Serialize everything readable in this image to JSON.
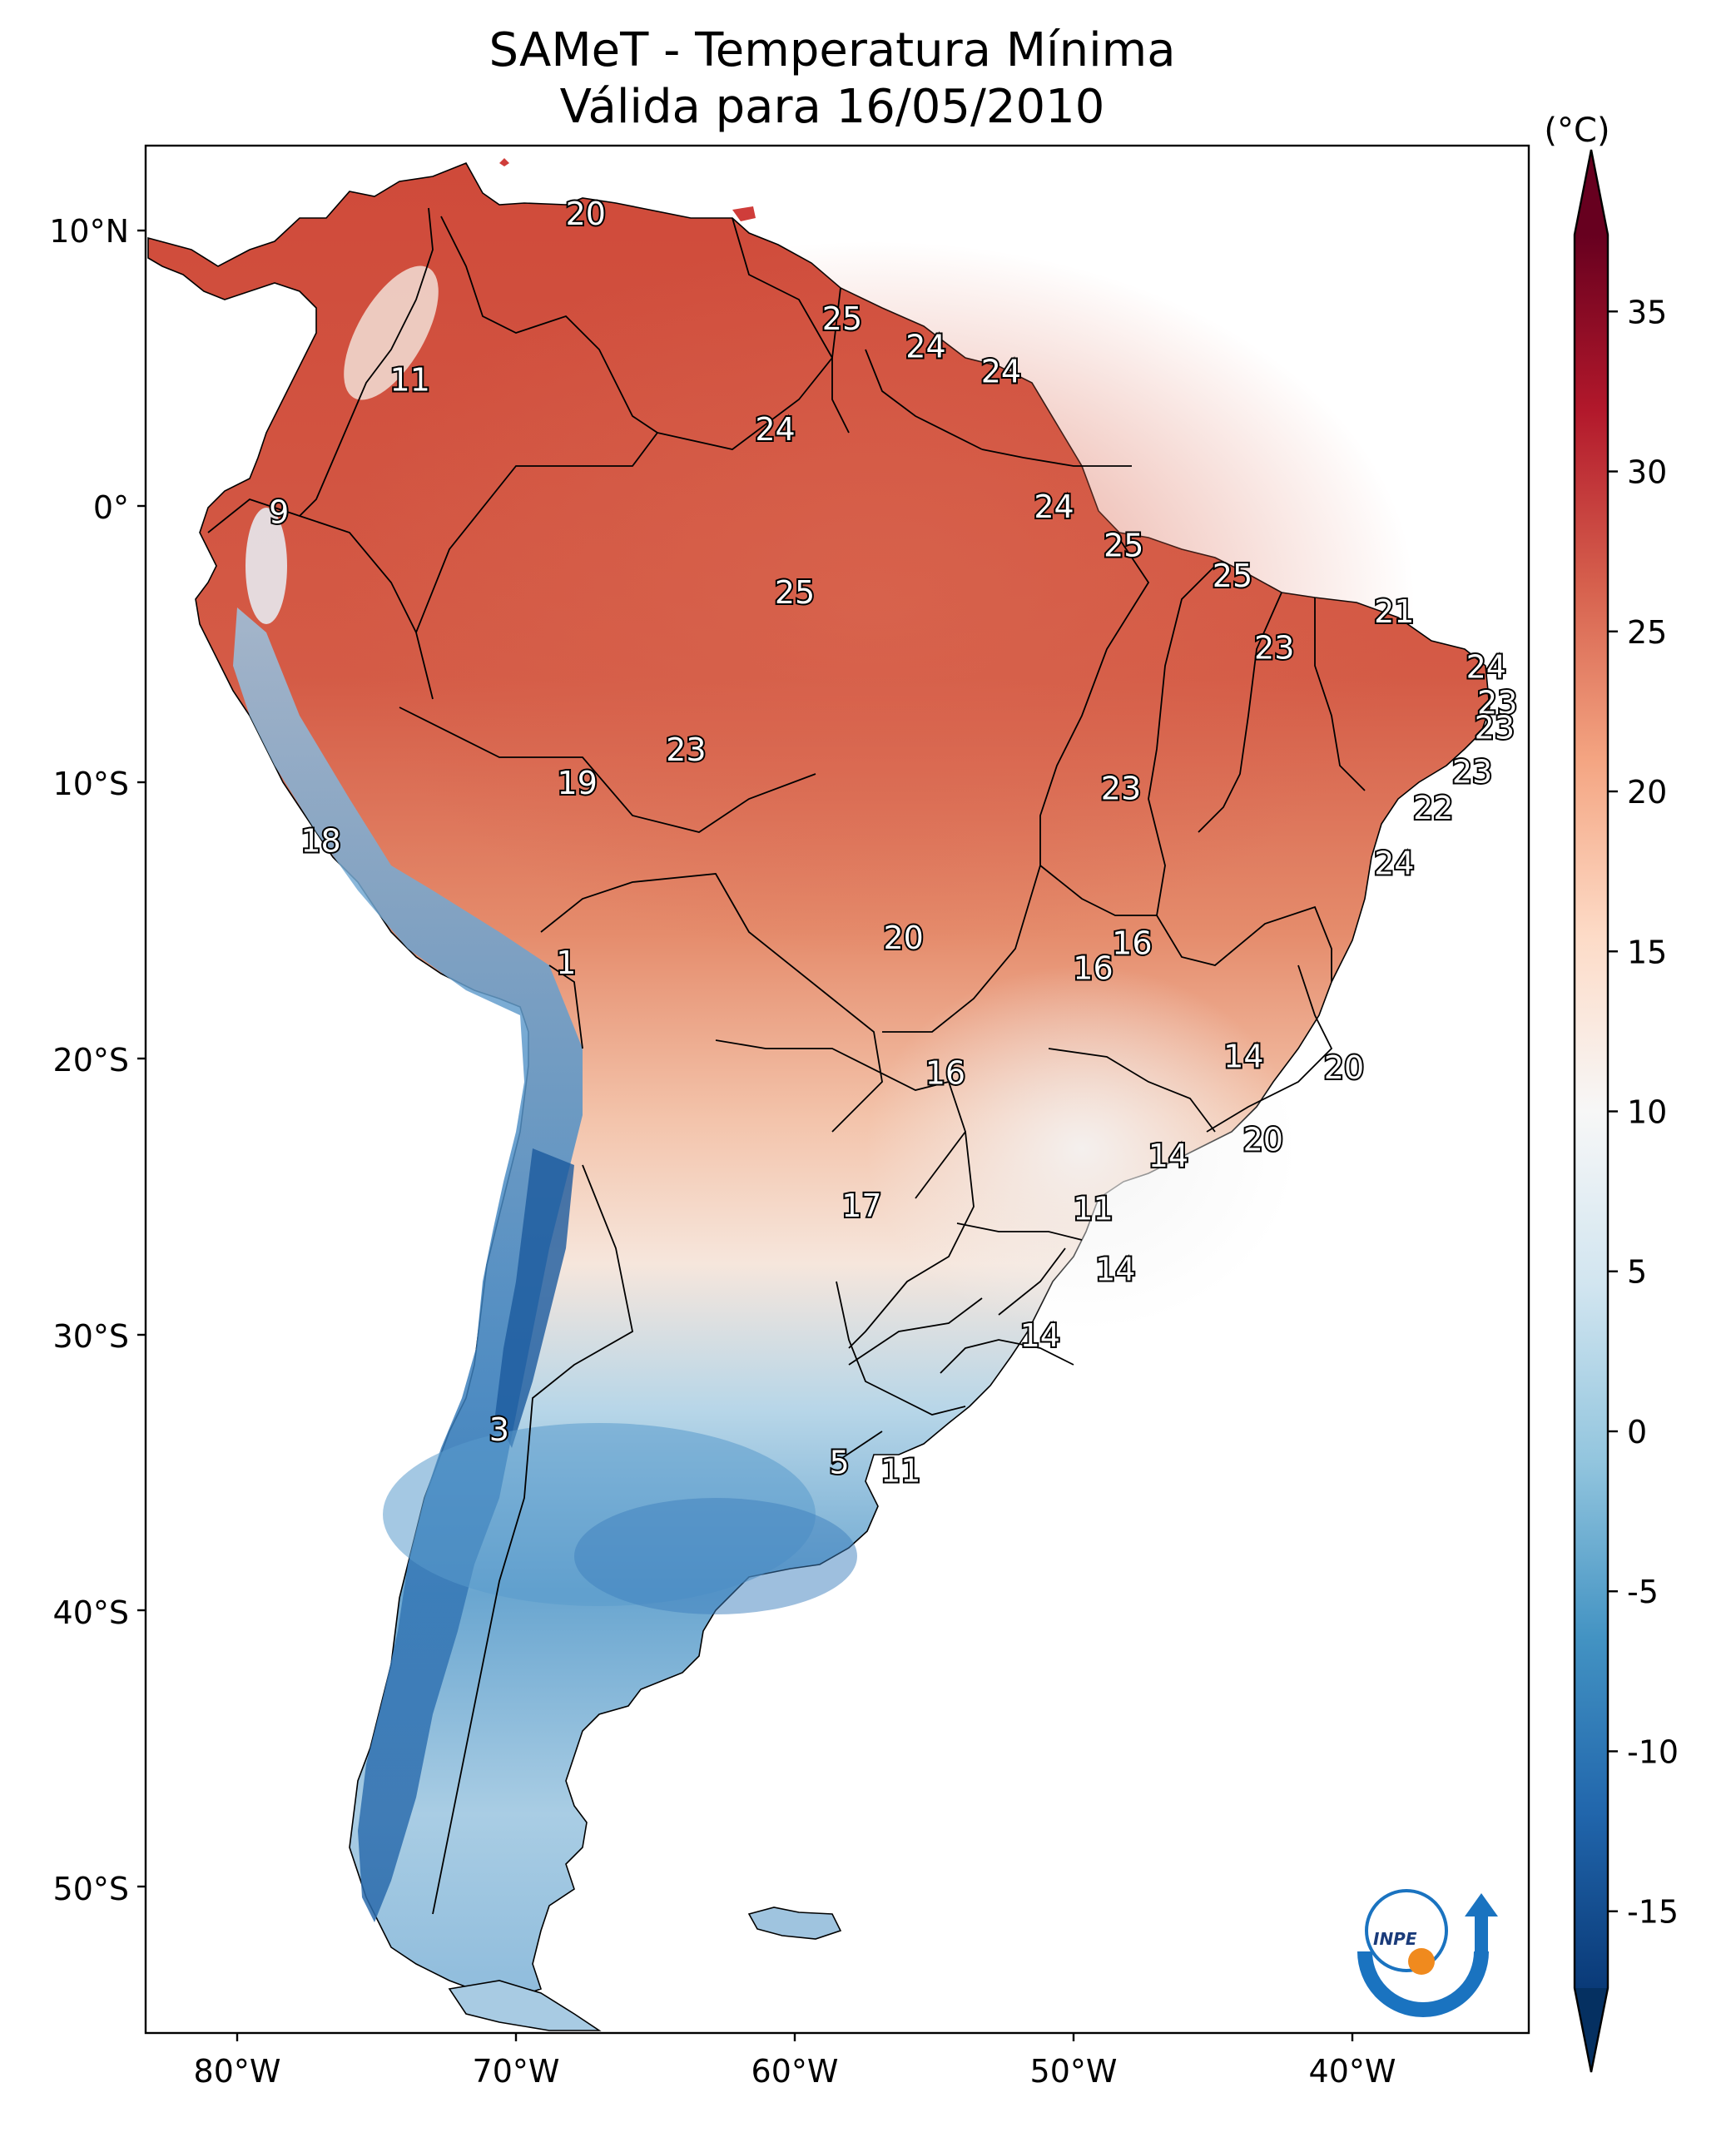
{
  "title": {
    "line1": "SAMeT - Temperatura Mínima",
    "line2": "Válida para 16/05/2010"
  },
  "colorbar": {
    "unit": "(°C)",
    "ticks": [
      "35",
      "30",
      "25",
      "20",
      "15",
      "10",
      "5",
      "0",
      "-5",
      "-10",
      "-15"
    ],
    "min": -15,
    "max": 35,
    "colormap": "RdBu_r",
    "extend": "both"
  },
  "axes": {
    "lon_ticks": [
      "80°W",
      "70°W",
      "60°W",
      "50°W",
      "40°W"
    ],
    "lat_ticks": [
      "10°N",
      "0°",
      "10°S",
      "20°S",
      "30°S",
      "40°S",
      "50°S"
    ]
  },
  "station_labels": [
    {
      "text": "20",
      "lon": -67.5,
      "lat": 10.6
    },
    {
      "text": "11",
      "lon": -73.8,
      "lat": 4.6
    },
    {
      "text": "25",
      "lon": -58.3,
      "lat": 6.8
    },
    {
      "text": "24",
      "lon": -55.3,
      "lat": 5.8
    },
    {
      "text": "24",
      "lon": -52.6,
      "lat": 4.9
    },
    {
      "text": "24",
      "lon": -60.7,
      "lat": 2.8
    },
    {
      "text": "9",
      "lon": -78.5,
      "lat": -0.2
    },
    {
      "text": "24",
      "lon": -50.7,
      "lat": 0.0
    },
    {
      "text": "25",
      "lon": -48.2,
      "lat": -1.4
    },
    {
      "text": "25",
      "lon": -44.3,
      "lat": -2.5
    },
    {
      "text": "21",
      "lon": -38.5,
      "lat": -3.8
    },
    {
      "text": "25",
      "lon": -60.0,
      "lat": -3.1
    },
    {
      "text": "23",
      "lon": -42.8,
      "lat": -5.1
    },
    {
      "text": "24",
      "lon": -35.2,
      "lat": -5.8
    },
    {
      "text": "23",
      "lon": -34.8,
      "lat": -7.1
    },
    {
      "text": "23",
      "lon": -34.9,
      "lat": -8.0
    },
    {
      "text": "23",
      "lon": -63.9,
      "lat": -8.8
    },
    {
      "text": "19",
      "lon": -67.8,
      "lat": -10.0
    },
    {
      "text": "23",
      "lon": -48.3,
      "lat": -10.2
    },
    {
      "text": "23",
      "lon": -35.7,
      "lat": -9.6
    },
    {
      "text": "22",
      "lon": -37.1,
      "lat": -10.9
    },
    {
      "text": "18",
      "lon": -77.0,
      "lat": -12.1
    },
    {
      "text": "24",
      "lon": -38.5,
      "lat": -12.9
    },
    {
      "text": "20",
      "lon": -56.1,
      "lat": -15.6
    },
    {
      "text": "16",
      "lon": -47.9,
      "lat": -15.8
    },
    {
      "text": "16",
      "lon": -49.3,
      "lat": -16.7
    },
    {
      "text": "1",
      "lon": -68.2,
      "lat": -16.5
    },
    {
      "text": "14",
      "lon": -43.9,
      "lat": -19.9
    },
    {
      "text": "20",
      "lon": -40.3,
      "lat": -20.3
    },
    {
      "text": "16",
      "lon": -54.6,
      "lat": -20.5
    },
    {
      "text": "20",
      "lon": -43.2,
      "lat": -22.9
    },
    {
      "text": "14",
      "lon": -46.6,
      "lat": -23.5
    },
    {
      "text": "17",
      "lon": -57.6,
      "lat": -25.3
    },
    {
      "text": "11",
      "lon": -49.3,
      "lat": -25.4
    },
    {
      "text": "14",
      "lon": -48.5,
      "lat": -27.6
    },
    {
      "text": "14",
      "lon": -51.2,
      "lat": -30.0
    },
    {
      "text": "3",
      "lon": -70.6,
      "lat": -33.4
    },
    {
      "text": "5",
      "lon": -58.4,
      "lat": -34.6
    },
    {
      "text": "11",
      "lon": -56.2,
      "lat": -34.9
    }
  ],
  "logo": {
    "text": "INPE"
  }
}
